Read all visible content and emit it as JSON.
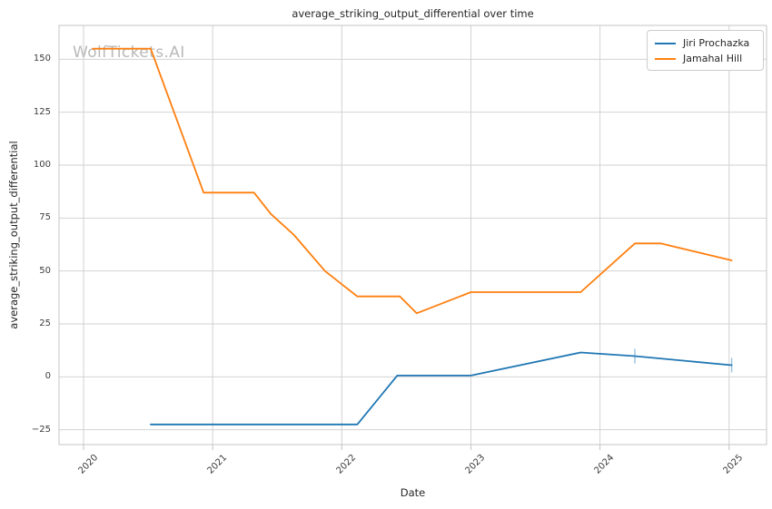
{
  "watermark": "WolfTickets.AI",
  "chart_data": {
    "type": "line",
    "title": "average_striking_output_differential over time",
    "xlabel": "Date",
    "ylabel": "average_striking_output_differential",
    "xlim": [
      2019.81,
      2025.29
    ],
    "ylim": [
      -32,
      166
    ],
    "grid": true,
    "legend_position": "upper right",
    "x_ticks": [
      2020,
      2021,
      2022,
      2023,
      2024,
      2025
    ],
    "x_tick_labels": [
      "2020",
      "2021",
      "2022",
      "2023",
      "2024",
      "2025"
    ],
    "y_ticks": [
      -25,
      0,
      25,
      50,
      75,
      100,
      125,
      150
    ],
    "y_tick_labels": [
      "−25",
      "0",
      "25",
      "50",
      "75",
      "100",
      "125",
      "150"
    ],
    "series": [
      {
        "name": "Jiri Prochazka",
        "color": "#1f77b4",
        "x": [
          2020.52,
          2022.12,
          2022.43,
          2023.0,
          2023.85,
          2024.27,
          2025.02
        ],
        "y": [
          -22.5,
          -22.5,
          0.6,
          0.6,
          11.5,
          9.8,
          5.5
        ],
        "point_ticks": [
          {
            "x": 2024.27,
            "y": 9.8
          },
          {
            "x": 2025.02,
            "y": 5.5
          }
        ]
      },
      {
        "name": "Jamahal Hill",
        "color": "#ff7f0e",
        "x": [
          2020.07,
          2020.52,
          2020.93,
          2021.32,
          2021.45,
          2021.63,
          2021.87,
          2022.12,
          2022.45,
          2022.58,
          2023.0,
          2023.85,
          2024.27,
          2024.47,
          2025.02
        ],
        "y": [
          155,
          155,
          87,
          87,
          77,
          67,
          50,
          38,
          38,
          30,
          40,
          40,
          63,
          63,
          55
        ],
        "point_ticks": []
      }
    ]
  },
  "colors": {
    "background": "#ffffff",
    "grid": "#d2d2d2",
    "spine": "#c6c6c6",
    "tick_mark": "#c2c2c2",
    "title_text": "#262626",
    "tick_text": "#3d3d3d",
    "watermark": "#b9b9b9",
    "series_blue": "#1f77b4",
    "series_orange": "#ff7f0e"
  }
}
